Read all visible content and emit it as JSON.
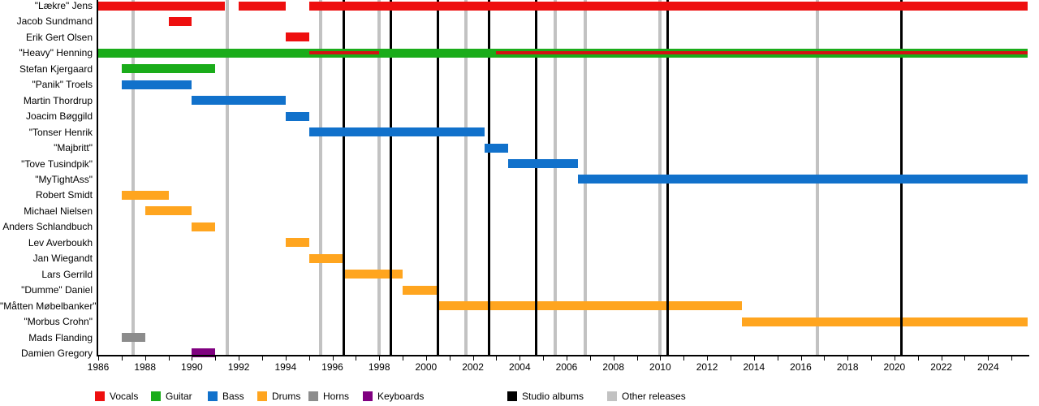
{
  "chart_data": {
    "type": "timeline",
    "description": "Band members timeline (gantt-style) by instrument with album release markers",
    "axis": {
      "x_min": 1986,
      "x_max": 2025.7,
      "labeled_ticks": [
        1986,
        1988,
        1990,
        1992,
        1994,
        1996,
        1998,
        2000,
        2002,
        2004,
        2006,
        2008,
        2010,
        2012,
        2014,
        2016,
        2018,
        2020,
        2022,
        2024
      ],
      "minor_tick_every_year": true,
      "grid": "vertical event lines only"
    },
    "members": [
      {
        "name": "\"Lækre\" Jens",
        "segments": [
          {
            "role": "vocals",
            "start": 1986,
            "end": 1991.4
          },
          {
            "role": "vocals",
            "start": 1992,
            "end": 1994
          },
          {
            "role": "vocals",
            "start": 1995,
            "end": 2025.7
          }
        ]
      },
      {
        "name": "Jacob Sundmand",
        "segments": [
          {
            "role": "vocals",
            "start": 1989,
            "end": 1990
          }
        ]
      },
      {
        "name": "Erik Gert Olsen",
        "segments": [
          {
            "role": "vocals",
            "start": 1994,
            "end": 1995
          }
        ]
      },
      {
        "name": "\"Heavy\" Henning",
        "segments": [
          {
            "role": "guitar",
            "start": 1986,
            "end": 2025.7
          },
          {
            "role": "vocals_overlay",
            "start": 1995,
            "end": 1998
          },
          {
            "role": "vocals_overlay",
            "start": 2003,
            "end": 2025.7
          }
        ]
      },
      {
        "name": "Stefan Kjergaard",
        "segments": [
          {
            "role": "guitar",
            "start": 1987,
            "end": 1991
          }
        ]
      },
      {
        "name": "\"Panik\" Troels",
        "segments": [
          {
            "role": "bass",
            "start": 1987,
            "end": 1990
          }
        ]
      },
      {
        "name": "Martin Thordrup",
        "segments": [
          {
            "role": "bass",
            "start": 1990,
            "end": 1994
          }
        ]
      },
      {
        "name": "Joacim Bøggild",
        "segments": [
          {
            "role": "bass",
            "start": 1994,
            "end": 1995
          }
        ]
      },
      {
        "name": "\"Tonser Henrik",
        "segments": [
          {
            "role": "bass",
            "start": 1995,
            "end": 2002.5
          }
        ]
      },
      {
        "name": "\"Majbritt\"",
        "segments": [
          {
            "role": "bass",
            "start": 2002.5,
            "end": 2003.5
          }
        ]
      },
      {
        "name": "\"Tove Tusindpik\"",
        "segments": [
          {
            "role": "bass",
            "start": 2003.5,
            "end": 2006.5
          }
        ]
      },
      {
        "name": "\"MyTightAss\"",
        "segments": [
          {
            "role": "bass",
            "start": 2006.5,
            "end": 2025.7
          }
        ]
      },
      {
        "name": "Robert Smidt",
        "segments": [
          {
            "role": "drums",
            "start": 1987,
            "end": 1989
          }
        ]
      },
      {
        "name": "Michael Nielsen",
        "segments": [
          {
            "role": "drums",
            "start": 1988,
            "end": 1990
          }
        ]
      },
      {
        "name": "Anders Schlandbuch",
        "segments": [
          {
            "role": "drums",
            "start": 1990,
            "end": 1991
          }
        ]
      },
      {
        "name": "Lev Averboukh",
        "segments": [
          {
            "role": "drums",
            "start": 1994,
            "end": 1995
          }
        ]
      },
      {
        "name": "Jan Wiegandt",
        "segments": [
          {
            "role": "drums",
            "start": 1995,
            "end": 1996.5
          }
        ]
      },
      {
        "name": "Lars Gerrild",
        "segments": [
          {
            "role": "drums",
            "start": 1996.5,
            "end": 1999
          }
        ]
      },
      {
        "name": "\"Dumme\" Daniel",
        "segments": [
          {
            "role": "drums",
            "start": 1999,
            "end": 2000.5
          }
        ]
      },
      {
        "name": "\"Måtten Møbelbanker\"",
        "segments": [
          {
            "role": "drums",
            "start": 2000.5,
            "end": 2013.5
          }
        ]
      },
      {
        "name": "\"Morbus Crohn\"",
        "segments": [
          {
            "role": "drums",
            "start": 2013.5,
            "end": 2025.7
          }
        ]
      },
      {
        "name": "Mads Flanding",
        "segments": [
          {
            "role": "horns",
            "start": 1987,
            "end": 1988
          }
        ]
      },
      {
        "name": "Damien Gregory",
        "segments": [
          {
            "role": "keyboards",
            "start": 1990,
            "end": 1991
          }
        ]
      }
    ],
    "studio_albums": [
      1996.5,
      1998.5,
      2000.5,
      2002.7,
      2004.7,
      2010.3,
      2020.3
    ],
    "other_releases": [
      1987.5,
      1991.5,
      1995.5,
      1998.0,
      2001.7,
      2005.5,
      2006.8,
      2010.0,
      2016.7
    ],
    "legend": [
      {
        "label": "Vocals",
        "color_key": "vocals"
      },
      {
        "label": "Guitar",
        "color_key": "guitar"
      },
      {
        "label": "Bass",
        "color_key": "bass"
      },
      {
        "label": "Drums",
        "color_key": "drums"
      },
      {
        "label": "Horns",
        "color_key": "horns"
      },
      {
        "label": "Keyboards",
        "color_key": "keyboards"
      },
      {
        "label": "Studio albums",
        "color_key": "studio_album"
      },
      {
        "label": "Other releases",
        "color_key": "other_release"
      }
    ]
  },
  "colors": {
    "vocals": "#ee0f0f",
    "vocals_overlay": "#d21212",
    "guitar": "#1aac1a",
    "bass": "#1171cb",
    "drums": "#ffa51f",
    "horns": "#8c8c8c",
    "keyboards": "#800080",
    "studio_album": "#000000",
    "other_release": "#c2c2c2",
    "axis": "#000000"
  }
}
